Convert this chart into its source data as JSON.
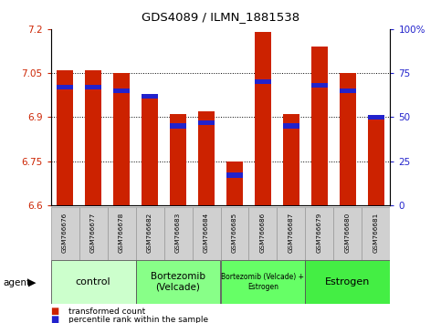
{
  "title": "GDS4089 / ILMN_1881538",
  "samples": [
    "GSM766676",
    "GSM766677",
    "GSM766678",
    "GSM766682",
    "GSM766683",
    "GSM766684",
    "GSM766685",
    "GSM766686",
    "GSM766687",
    "GSM766679",
    "GSM766680",
    "GSM766681"
  ],
  "bar_values": [
    7.06,
    7.06,
    7.05,
    6.98,
    6.91,
    6.92,
    6.75,
    7.19,
    6.91,
    7.14,
    7.05,
    6.9
  ],
  "percentile_pct": [
    67,
    67,
    65,
    62,
    45,
    47,
    17,
    70,
    45,
    68,
    65,
    50
  ],
  "bar_color": "#cc2200",
  "blue_color": "#2222cc",
  "ymin": 6.6,
  "ymax": 7.2,
  "yticks": [
    6.6,
    6.75,
    6.9,
    7.05,
    7.2
  ],
  "ytick_labels": [
    "6.6",
    "6.75",
    "6.9",
    "7.05",
    "7.2"
  ],
  "right_yticks": [
    0,
    25,
    50,
    75,
    100
  ],
  "right_ytick_labels": [
    "0",
    "25",
    "50",
    "75",
    "100%"
  ],
  "groups": [
    {
      "label": "control",
      "start": 0,
      "end": 3,
      "color": "#ccffcc",
      "fontsize": 8
    },
    {
      "label": "Bortezomib\n(Velcade)",
      "start": 3,
      "end": 6,
      "color": "#88ff88",
      "fontsize": 7.5
    },
    {
      "label": "Bortezomib (Velcade) +\nEstrogen",
      "start": 6,
      "end": 9,
      "color": "#66ff66",
      "fontsize": 5.5
    },
    {
      "label": "Estrogen",
      "start": 9,
      "end": 12,
      "color": "#44ee44",
      "fontsize": 8
    }
  ],
  "legend_red": "transformed count",
  "legend_blue": "percentile rank within the sample",
  "bar_width": 0.6,
  "bg_color": "#ffffff"
}
